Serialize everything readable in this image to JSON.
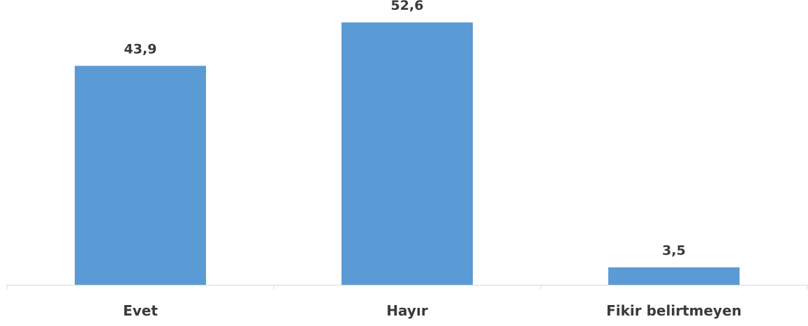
{
  "chart_data": {
    "type": "bar",
    "categories": [
      "Evet",
      "Hayır",
      "Fikir belirtmeyen"
    ],
    "values": [
      43.9,
      52.6,
      3.5
    ],
    "value_labels": [
      "43,9",
      "52,6",
      "3,5"
    ],
    "ylim": [
      0,
      55
    ],
    "grid": false,
    "legend": "none",
    "bar_color": "#5b9bd5",
    "axis_color": "#d9d9d9",
    "text_color": "#3a3a3a"
  }
}
